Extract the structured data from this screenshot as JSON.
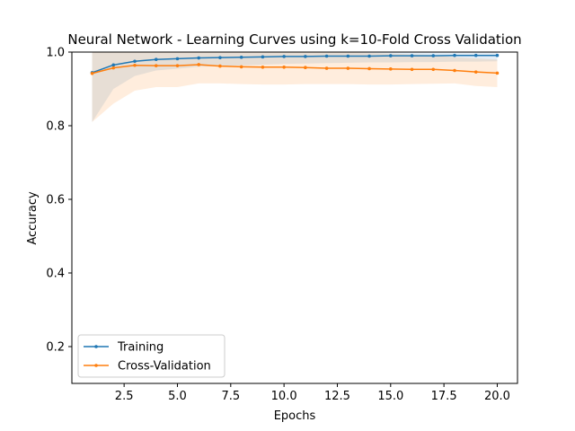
{
  "chart_data": {
    "type": "line",
    "title": "Neural Network - Learning Curves using k=10-Fold Cross Validation",
    "xlabel": "Epochs",
    "ylabel": "Accuracy",
    "xlim": [
      0.05,
      20.95
    ],
    "ylim": [
      0.1,
      1.0
    ],
    "xticks": [
      2.5,
      5.0,
      7.5,
      10.0,
      12.5,
      15.0,
      17.5,
      20.0
    ],
    "xtick_labels": [
      "2.5",
      "5.0",
      "7.5",
      "10.0",
      "12.5",
      "15.0",
      "17.5",
      "20.0"
    ],
    "yticks": [
      0.2,
      0.4,
      0.6,
      0.8,
      1.0
    ],
    "ytick_labels": [
      "0.2",
      "0.4",
      "0.6",
      "0.8",
      "1.0"
    ],
    "legend_position": "lower-left",
    "x": [
      1,
      2,
      3,
      4,
      5,
      6,
      7,
      8,
      9,
      10,
      11,
      12,
      13,
      14,
      15,
      16,
      17,
      18,
      19,
      20
    ],
    "series": [
      {
        "name": "Training",
        "color": "#1f77b4",
        "values": [
          0.944,
          0.965,
          0.975,
          0.98,
          0.982,
          0.984,
          0.985,
          0.986,
          0.987,
          0.988,
          0.988,
          0.989,
          0.989,
          0.989,
          0.99,
          0.99,
          0.99,
          0.991,
          0.991,
          0.991
        ],
        "band_lower": [
          0.81,
          0.9,
          0.935,
          0.95,
          0.955,
          0.96,
          0.962,
          0.964,
          0.966,
          0.968,
          0.969,
          0.97,
          0.971,
          0.972,
          0.972,
          0.973,
          0.973,
          0.974,
          0.974,
          0.975
        ],
        "band_upper": [
          1.08,
          1.03,
          1.015,
          1.01,
          1.009,
          1.008,
          1.008,
          1.008,
          1.008,
          1.008,
          1.007,
          1.007,
          1.007,
          1.006,
          1.006,
          1.006,
          1.006,
          1.006,
          1.006,
          1.006
        ]
      },
      {
        "name": "Cross-Validation",
        "color": "#ff7f0e",
        "values": [
          0.942,
          0.957,
          0.964,
          0.963,
          0.963,
          0.966,
          0.962,
          0.96,
          0.959,
          0.959,
          0.958,
          0.956,
          0.956,
          0.955,
          0.954,
          0.953,
          0.953,
          0.95,
          0.946,
          0.943
        ],
        "band_lower": [
          0.81,
          0.86,
          0.895,
          0.905,
          0.905,
          0.915,
          0.915,
          0.913,
          0.912,
          0.912,
          0.913,
          0.913,
          0.913,
          0.912,
          0.912,
          0.913,
          0.914,
          0.915,
          0.908,
          0.905
        ],
        "band_upper": [
          1.07,
          1.05,
          1.03,
          1.02,
          1.02,
          1.015,
          1.01,
          1.008,
          1.006,
          1.006,
          1.004,
          1.0,
          0.999,
          0.998,
          0.996,
          0.994,
          0.992,
          0.986,
          0.983,
          0.98
        ]
      }
    ]
  }
}
